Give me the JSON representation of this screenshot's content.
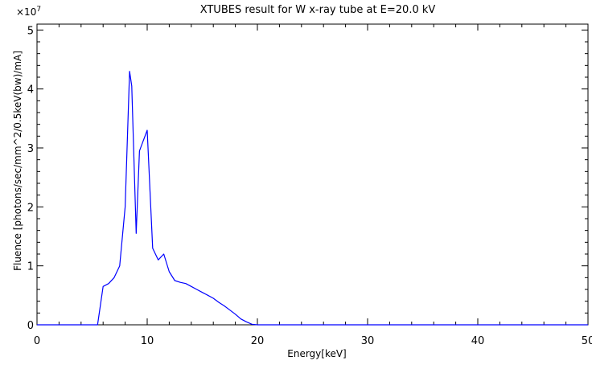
{
  "chart_data": {
    "type": "line",
    "title": "XTUBES result for W x-ray tube at E=20.0 kV",
    "xlabel": "Energy[keV]",
    "ylabel": "Fluence [photons/sec/mm^2/0.5keV(bw)/mA]",
    "y_multiplier": "×10",
    "y_multiplier_exp": "7",
    "xlim": [
      0,
      50
    ],
    "ylim": [
      0,
      5.1
    ],
    "x_ticks": [
      "0",
      "10",
      "20",
      "30",
      "40",
      "50"
    ],
    "y_ticks": [
      "0",
      "1",
      "2",
      "3",
      "4",
      "5"
    ],
    "grid": false,
    "series": [
      {
        "color": "#0000ff",
        "x": [
          0,
          0.5,
          1.0,
          1.5,
          2.0,
          2.5,
          3.0,
          3.5,
          4.0,
          4.5,
          5.0,
          5.5,
          6.0,
          6.5,
          7.0,
          7.5,
          8.0,
          8.4,
          8.6,
          9.0,
          9.3,
          9.6,
          10.0,
          10.5,
          11.0,
          11.5,
          12.0,
          12.5,
          13.0,
          13.5,
          14.0,
          14.5,
          15.0,
          15.5,
          16.0,
          16.5,
          17.0,
          17.5,
          18.0,
          18.5,
          19.0,
          19.5,
          20.0,
          20.5,
          21.0,
          22.0,
          25.0,
          30.0,
          35.0,
          40.0,
          45.0,
          50.0
        ],
        "y": [
          0,
          0,
          0,
          0,
          0,
          0,
          0,
          0,
          0,
          0,
          0,
          0,
          0.65,
          0.7,
          0.8,
          1.0,
          2.0,
          4.3,
          4.05,
          1.55,
          2.95,
          3.1,
          3.3,
          1.3,
          1.1,
          1.2,
          0.9,
          0.75,
          0.72,
          0.7,
          0.65,
          0.6,
          0.55,
          0.5,
          0.45,
          0.38,
          0.32,
          0.25,
          0.18,
          0.1,
          0.05,
          0.01,
          0,
          0,
          0,
          0,
          0,
          0,
          0,
          0,
          0,
          0
        ]
      }
    ]
  }
}
